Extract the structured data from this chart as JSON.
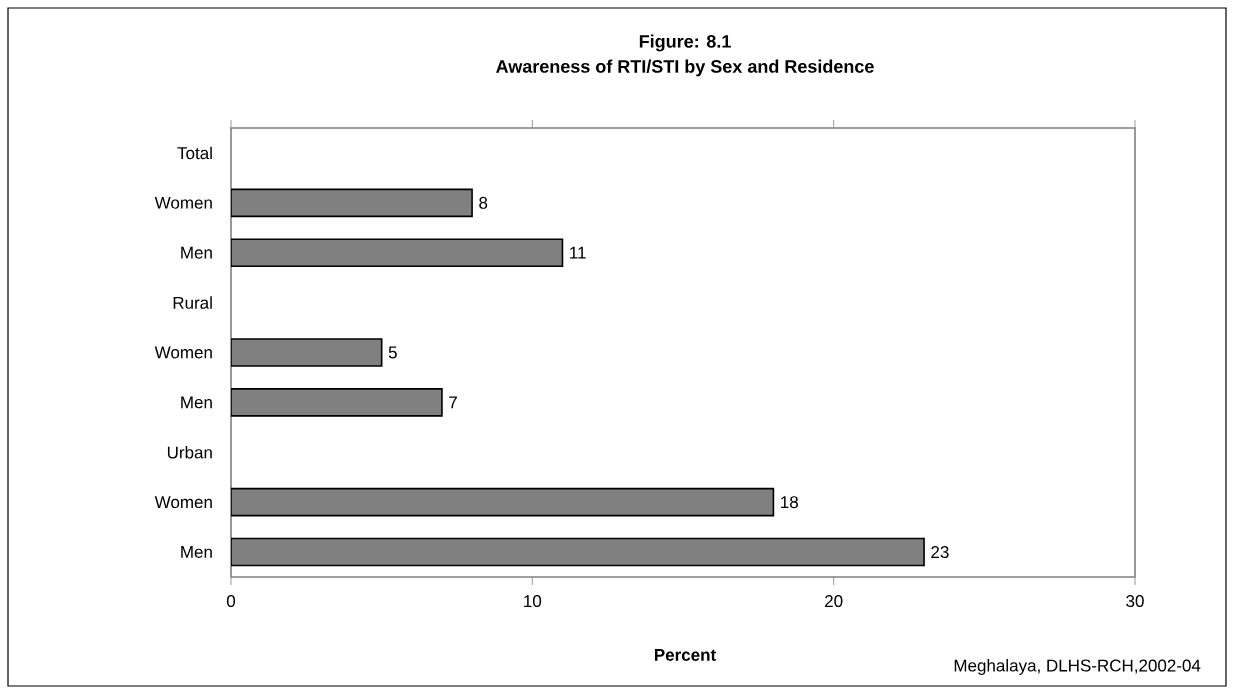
{
  "chart_data": {
    "type": "bar",
    "orientation": "horizontal",
    "title": "Figure: 8.1",
    "subtitle": "Awareness of RTI/STI by Sex and Residence",
    "xlabel": "Percent",
    "categories": [
      "Total",
      "Women",
      "Men",
      "Rural",
      "Women",
      "Men",
      "Urban",
      "Women",
      "Men"
    ],
    "values": [
      null,
      8,
      11,
      null,
      5,
      7,
      null,
      18,
      23
    ],
    "color": "#808080",
    "xlim": [
      0,
      30
    ],
    "xticks": [
      0,
      10,
      20,
      30
    ],
    "data_labels": true,
    "annotations": [
      "Meghalaya, DLHS-RCH,2002-04"
    ]
  }
}
